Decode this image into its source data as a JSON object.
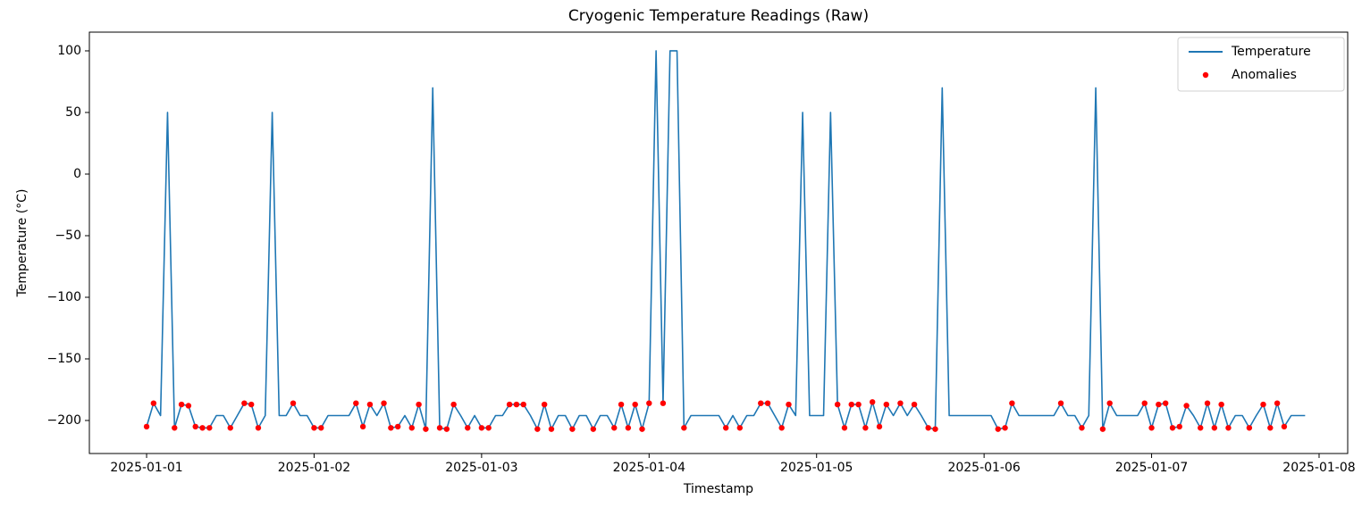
{
  "chart_data": {
    "type": "line",
    "title": "Cryogenic Temperature Readings (Raw)",
    "x_label": "Timestamp",
    "y_label": "Temperature (°C)",
    "grid": false,
    "legend": "upper right",
    "xlim": [
      "2024-12-31 15:48",
      "2025-01-08 04:06"
    ],
    "xticks": [
      "2025-01-01",
      "2025-01-02",
      "2025-01-03",
      "2025-01-04",
      "2025-01-05",
      "2025-01-06",
      "2025-01-07",
      "2025-01-08"
    ],
    "ylim": [
      -226.8,
      115.2
    ],
    "yticks": [
      {
        "value": -200,
        "label": "−200"
      },
      {
        "value": -150,
        "label": "−150"
      },
      {
        "value": -100,
        "label": "−100"
      },
      {
        "value": -50,
        "label": "−50"
      },
      0,
      50,
      100
    ],
    "x": [
      "2025-01-01 00:00",
      "2025-01-01 01:00",
      "2025-01-01 02:00",
      "2025-01-01 03:00",
      "2025-01-01 04:00",
      "2025-01-01 05:00",
      "2025-01-01 06:00",
      "2025-01-01 07:00",
      "2025-01-01 08:00",
      "2025-01-01 09:00",
      "2025-01-01 10:00",
      "2025-01-01 11:00",
      "2025-01-01 12:00",
      "2025-01-01 13:00",
      "2025-01-01 14:00",
      "2025-01-01 15:00",
      "2025-01-01 16:00",
      "2025-01-01 17:00",
      "2025-01-01 18:00",
      "2025-01-01 19:00",
      "2025-01-01 20:00",
      "2025-01-01 21:00",
      "2025-01-01 22:00",
      "2025-01-01 23:00",
      "2025-01-02 00:00",
      "2025-01-02 01:00",
      "2025-01-02 02:00",
      "2025-01-02 03:00",
      "2025-01-02 04:00",
      "2025-01-02 05:00",
      "2025-01-02 06:00",
      "2025-01-02 07:00",
      "2025-01-02 08:00",
      "2025-01-02 09:00",
      "2025-01-02 10:00",
      "2025-01-02 11:00",
      "2025-01-02 12:00",
      "2025-01-02 13:00",
      "2025-01-02 14:00",
      "2025-01-02 15:00",
      "2025-01-02 16:00",
      "2025-01-02 17:00",
      "2025-01-02 18:00",
      "2025-01-02 19:00",
      "2025-01-02 20:00",
      "2025-01-02 21:00",
      "2025-01-02 22:00",
      "2025-01-02 23:00",
      "2025-01-03 00:00",
      "2025-01-03 01:00",
      "2025-01-03 02:00",
      "2025-01-03 03:00",
      "2025-01-03 04:00",
      "2025-01-03 05:00",
      "2025-01-03 06:00",
      "2025-01-03 07:00",
      "2025-01-03 08:00",
      "2025-01-03 09:00",
      "2025-01-03 10:00",
      "2025-01-03 11:00",
      "2025-01-03 12:00",
      "2025-01-03 13:00",
      "2025-01-03 14:00",
      "2025-01-03 15:00",
      "2025-01-03 16:00",
      "2025-01-03 17:00",
      "2025-01-03 18:00",
      "2025-01-03 19:00",
      "2025-01-03 20:00",
      "2025-01-03 21:00",
      "2025-01-03 22:00",
      "2025-01-03 23:00",
      "2025-01-04 00:00",
      "2025-01-04 01:00",
      "2025-01-04 02:00",
      "2025-01-04 03:00",
      "2025-01-04 04:00",
      "2025-01-04 05:00",
      "2025-01-04 06:00",
      "2025-01-04 07:00",
      "2025-01-04 08:00",
      "2025-01-04 09:00",
      "2025-01-04 10:00",
      "2025-01-04 11:00",
      "2025-01-04 12:00",
      "2025-01-04 13:00",
      "2025-01-04 14:00",
      "2025-01-04 15:00",
      "2025-01-04 16:00",
      "2025-01-04 17:00",
      "2025-01-04 18:00",
      "2025-01-04 19:00",
      "2025-01-04 20:00",
      "2025-01-04 21:00",
      "2025-01-04 22:00",
      "2025-01-04 23:00",
      "2025-01-05 00:00",
      "2025-01-05 01:00",
      "2025-01-05 02:00",
      "2025-01-05 03:00",
      "2025-01-05 04:00",
      "2025-01-05 05:00",
      "2025-01-05 06:00",
      "2025-01-05 07:00",
      "2025-01-05 08:00",
      "2025-01-05 09:00",
      "2025-01-05 10:00",
      "2025-01-05 11:00",
      "2025-01-05 12:00",
      "2025-01-05 13:00",
      "2025-01-05 14:00",
      "2025-01-05 15:00",
      "2025-01-05 16:00",
      "2025-01-05 17:00",
      "2025-01-05 18:00",
      "2025-01-05 19:00",
      "2025-01-05 20:00",
      "2025-01-05 21:00",
      "2025-01-05 22:00",
      "2025-01-05 23:00",
      "2025-01-06 00:00",
      "2025-01-06 01:00",
      "2025-01-06 02:00",
      "2025-01-06 03:00",
      "2025-01-06 04:00",
      "2025-01-06 05:00",
      "2025-01-06 06:00",
      "2025-01-06 07:00",
      "2025-01-06 08:00",
      "2025-01-06 09:00",
      "2025-01-06 10:00",
      "2025-01-06 11:00",
      "2025-01-06 12:00",
      "2025-01-06 13:00",
      "2025-01-06 14:00",
      "2025-01-06 15:00",
      "2025-01-06 16:00",
      "2025-01-06 17:00",
      "2025-01-06 18:00",
      "2025-01-06 19:00",
      "2025-01-06 20:00",
      "2025-01-06 21:00",
      "2025-01-06 22:00",
      "2025-01-06 23:00",
      "2025-01-07 00:00",
      "2025-01-07 01:00",
      "2025-01-07 02:00",
      "2025-01-07 03:00",
      "2025-01-07 04:00",
      "2025-01-07 05:00",
      "2025-01-07 06:00",
      "2025-01-07 07:00",
      "2025-01-07 08:00",
      "2025-01-07 09:00",
      "2025-01-07 10:00",
      "2025-01-07 11:00",
      "2025-01-07 12:00",
      "2025-01-07 13:00",
      "2025-01-07 14:00",
      "2025-01-07 15:00",
      "2025-01-07 16:00",
      "2025-01-07 17:00",
      "2025-01-07 18:00",
      "2025-01-07 19:00",
      "2025-01-07 20:00",
      "2025-01-07 21:00",
      "2025-01-07 22:00"
    ],
    "series": [
      {
        "name": "Temperature",
        "type": "line",
        "color": "#1f77b4",
        "values": [
          -205,
          -186,
          -196,
          50,
          -206,
          -187,
          -188,
          -205,
          -206,
          -206,
          -196,
          -196,
          -206,
          -196,
          -186,
          -187,
          -206,
          -196,
          50,
          -196,
          -196,
          -186,
          -196,
          -196,
          -206,
          -206,
          -196,
          -196,
          -196,
          -196,
          -186,
          -205,
          -187,
          -196,
          -186,
          -206,
          -205,
          -196,
          -206,
          -187,
          -207,
          70,
          -206,
          -207,
          -187,
          -196,
          -206,
          -196,
          -206,
          -206,
          -196,
          -196,
          -187,
          -187,
          -187,
          -196,
          -207,
          -187,
          -207,
          -196,
          -196,
          -207,
          -196,
          -196,
          -207,
          -196,
          -196,
          -206,
          -187,
          -206,
          -187,
          -207,
          -186,
          100,
          -186,
          100,
          100,
          -206,
          -196,
          -196,
          -196,
          -196,
          -196,
          -206,
          -196,
          -206,
          -196,
          -196,
          -186,
          -186,
          -196,
          -206,
          -187,
          -196,
          50,
          -196,
          -196,
          -196,
          50,
          -187,
          -206,
          -187,
          -187,
          -206,
          -185,
          -205,
          -187,
          -196,
          -186,
          -196,
          -187,
          -196,
          -206,
          -207,
          70,
          -196,
          -196,
          -196,
          -196,
          -196,
          -196,
          -196,
          -207,
          -206,
          -186,
          -196,
          -196,
          -196,
          -196,
          -196,
          -196,
          -186,
          -196,
          -196,
          -206,
          -196,
          70,
          -207,
          -186,
          -196,
          -196,
          -196,
          -196,
          -186,
          -206,
          -187,
          -186,
          -206,
          -205,
          -188,
          -196,
          -206,
          -186,
          -206,
          -187,
          -206,
          -196,
          -196,
          -206,
          -196,
          -187,
          -206,
          -186,
          -205,
          -196,
          -196,
          -196
        ]
      },
      {
        "name": "Anomalies",
        "type": "scatter",
        "color": "#ff0000",
        "values": [
          -205,
          -186,
          null,
          null,
          -206,
          -187,
          -188,
          -205,
          -206,
          -206,
          null,
          null,
          -206,
          null,
          -186,
          -187,
          -206,
          null,
          null,
          null,
          null,
          -186,
          null,
          null,
          -206,
          -206,
          null,
          null,
          null,
          null,
          -186,
          -205,
          -187,
          null,
          -186,
          -206,
          -205,
          null,
          -206,
          -187,
          -207,
          null,
          -206,
          -207,
          -187,
          null,
          -206,
          null,
          -206,
          -206,
          null,
          null,
          -187,
          -187,
          -187,
          null,
          -207,
          -187,
          -207,
          null,
          null,
          -207,
          null,
          null,
          -207,
          null,
          null,
          -206,
          -187,
          -206,
          -187,
          -207,
          -186,
          null,
          -186,
          null,
          null,
          -206,
          null,
          null,
          null,
          null,
          null,
          -206,
          null,
          -206,
          null,
          null,
          -186,
          -186,
          null,
          -206,
          -187,
          null,
          null,
          null,
          null,
          null,
          null,
          -187,
          -206,
          -187,
          -187,
          -206,
          -185,
          -205,
          -187,
          null,
          -186,
          null,
          -187,
          null,
          -206,
          -207,
          null,
          null,
          null,
          null,
          null,
          null,
          null,
          null,
          -207,
          -206,
          -186,
          null,
          null,
          null,
          null,
          null,
          null,
          -186,
          null,
          null,
          -206,
          null,
          null,
          -207,
          -186,
          null,
          null,
          null,
          null,
          -186,
          -206,
          -187,
          -186,
          -206,
          -205,
          -188,
          null,
          -206,
          -186,
          -206,
          -187,
          -206,
          null,
          null,
          -206,
          null,
          -187,
          -206,
          -186,
          -205,
          null,
          null,
          null
        ]
      }
    ]
  }
}
